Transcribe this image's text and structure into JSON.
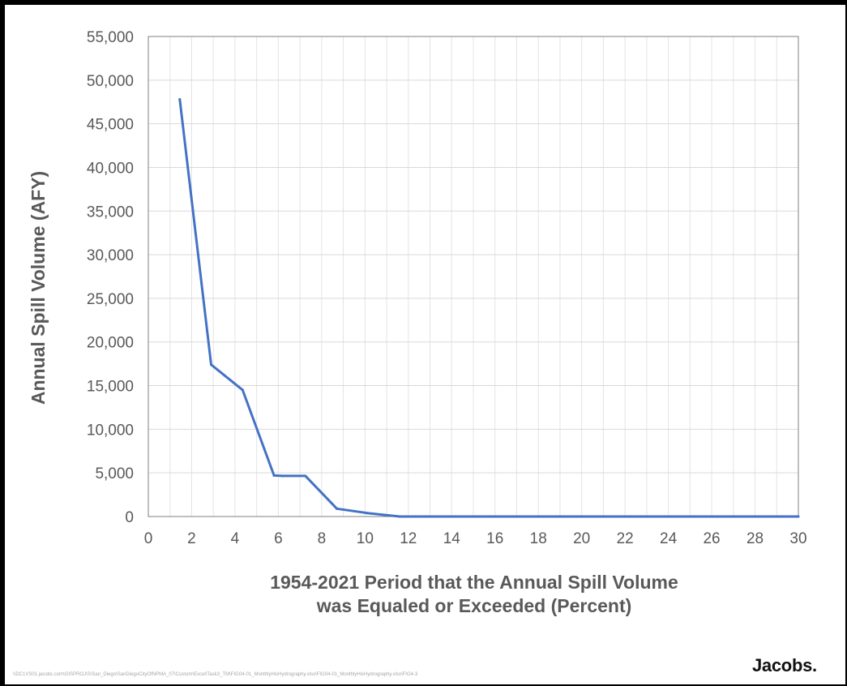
{
  "chart_data": {
    "type": "line",
    "title": "",
    "xlabel_lines": [
      "1954-2021 Period that the Annual Spill Volume",
      "was Equaled or Exceeded (Percent)"
    ],
    "ylabel": "Annual Spill Volume (AFY)",
    "xlim": [
      0,
      30
    ],
    "ylim": [
      0,
      55000
    ],
    "x_ticks": [
      "0",
      "2",
      "4",
      "6",
      "8",
      "10",
      "12",
      "14",
      "16",
      "18",
      "20",
      "22",
      "24",
      "26",
      "28",
      "30"
    ],
    "y_ticks": [
      "0",
      "5,000",
      "10,000",
      "15,000",
      "20,000",
      "25,000",
      "30,000",
      "35,000",
      "40,000",
      "45,000",
      "50,000",
      "55,000"
    ],
    "grid": true,
    "series": [
      {
        "color": "#4472c4",
        "x": [
          1.45,
          2.9,
          4.35,
          5.8,
          6.2,
          7.25,
          8.7,
          10.1,
          11.6,
          13,
          15,
          20,
          25,
          30
        ],
        "y": [
          47800,
          17400,
          14500,
          4700,
          4650,
          4650,
          900,
          400,
          0,
          0,
          0,
          0,
          0,
          0
        ]
      }
    ]
  },
  "footer": {
    "file_path": "\\\\DC1VS01.jacobs.com\\GISPROJ\\S\\San_Diego\\SanDiegoCityOfNPMA_07\\Custom\\Excel\\Task3_TM\\FIG04-01_MonthlyHisHydrography.xlsx\\FIG04-01_MonthlyHisHydrography.xlsx\\FIG4-3",
    "logo": "Jacobs"
  }
}
